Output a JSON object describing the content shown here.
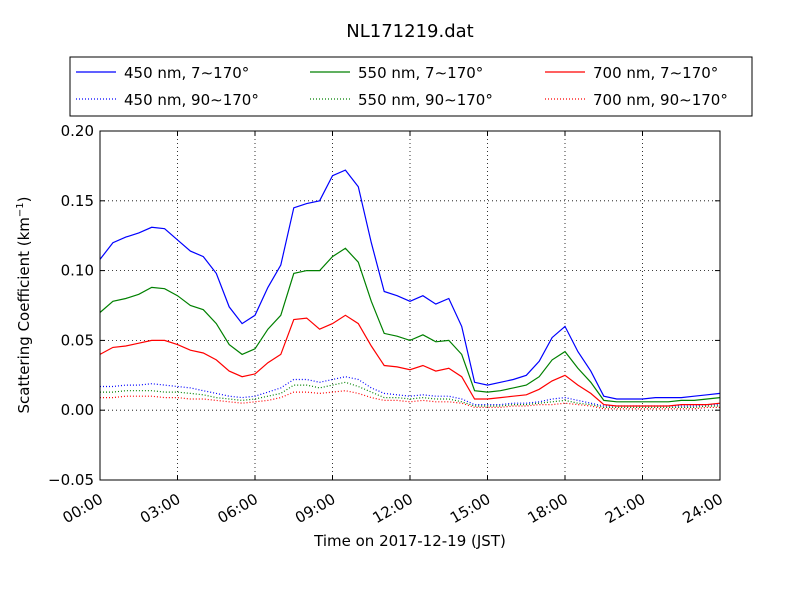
{
  "chart_data": {
    "type": "line",
    "title": "NL171219.dat",
    "xlabel": "Time on 2017-12-19 (JST)",
    "ylabel": "Scattering Coefficient (km",
    "ylabel_sup": "−1",
    "ylabel_close": ")",
    "xlim": [
      0,
      24
    ],
    "ylim": [
      -0.05,
      0.2
    ],
    "grid": true,
    "legend_position": "top, above plot",
    "x_tick_labels": [
      "00:00",
      "03:00",
      "06:00",
      "09:00",
      "12:00",
      "15:00",
      "18:00",
      "21:00",
      "24:00"
    ],
    "x_tick_values": [
      0,
      3,
      6,
      9,
      12,
      15,
      18,
      21,
      24
    ],
    "y_tick_labels": [
      "−0.05",
      "0.00",
      "0.05",
      "0.10",
      "0.15",
      "0.20"
    ],
    "y_tick_values": [
      -0.05,
      0.0,
      0.05,
      0.1,
      0.15,
      0.2
    ],
    "x": [
      0,
      0.5,
      1,
      1.5,
      2,
      2.5,
      3,
      3.5,
      4,
      4.5,
      5,
      5.5,
      6,
      6.5,
      7,
      7.5,
      8,
      8.5,
      9,
      9.5,
      10,
      10.5,
      11,
      11.5,
      12,
      12.5,
      13,
      13.5,
      14,
      14.5,
      15,
      15.5,
      16,
      16.5,
      17,
      17.5,
      18,
      18.5,
      19,
      19.5,
      20,
      20.5,
      21,
      21.5,
      22,
      22.5,
      23,
      23.5,
      24
    ],
    "series": [
      {
        "name": "450 nm, 7∼170°",
        "color": "#0000ff",
        "style": "solid",
        "values": [
          0.108,
          0.12,
          0.124,
          0.127,
          0.131,
          0.13,
          0.122,
          0.114,
          0.11,
          0.098,
          0.074,
          0.062,
          0.068,
          0.088,
          0.104,
          0.145,
          0.148,
          0.15,
          0.168,
          0.172,
          0.16,
          0.12,
          0.085,
          0.082,
          0.078,
          0.082,
          0.076,
          0.08,
          0.06,
          0.02,
          0.018,
          0.02,
          0.022,
          0.025,
          0.035,
          0.052,
          0.06,
          0.042,
          0.028,
          0.01,
          0.008,
          0.008,
          0.008,
          0.009,
          0.009,
          0.009,
          0.01,
          0.011,
          0.012
        ]
      },
      {
        "name": "450 nm, 90∼170°",
        "color": "#0000ff",
        "style": "dotted",
        "values": [
          0.017,
          0.017,
          0.018,
          0.018,
          0.019,
          0.018,
          0.017,
          0.016,
          0.014,
          0.012,
          0.01,
          0.009,
          0.01,
          0.013,
          0.016,
          0.022,
          0.022,
          0.02,
          0.022,
          0.024,
          0.022,
          0.016,
          0.012,
          0.011,
          0.01,
          0.011,
          0.01,
          0.01,
          0.008,
          0.004,
          0.004,
          0.004,
          0.005,
          0.005,
          0.006,
          0.008,
          0.009,
          0.007,
          0.005,
          0.003,
          0.003,
          0.003,
          0.003,
          0.003,
          0.003,
          0.003,
          0.003,
          0.004,
          0.004
        ]
      },
      {
        "name": "550 nm, 7∼170°",
        "color": "#008000",
        "style": "solid",
        "values": [
          0.07,
          0.078,
          0.08,
          0.083,
          0.088,
          0.087,
          0.082,
          0.075,
          0.072,
          0.062,
          0.047,
          0.04,
          0.044,
          0.058,
          0.068,
          0.098,
          0.1,
          0.1,
          0.11,
          0.116,
          0.106,
          0.078,
          0.055,
          0.053,
          0.05,
          0.054,
          0.049,
          0.05,
          0.04,
          0.014,
          0.013,
          0.014,
          0.016,
          0.018,
          0.024,
          0.036,
          0.042,
          0.03,
          0.02,
          0.007,
          0.006,
          0.006,
          0.006,
          0.006,
          0.006,
          0.007,
          0.007,
          0.008,
          0.009
        ]
      },
      {
        "name": "550 nm, 90∼170°",
        "color": "#008000",
        "style": "dotted",
        "values": [
          0.013,
          0.013,
          0.014,
          0.014,
          0.014,
          0.013,
          0.013,
          0.012,
          0.011,
          0.009,
          0.008,
          0.007,
          0.008,
          0.01,
          0.012,
          0.018,
          0.018,
          0.016,
          0.018,
          0.02,
          0.017,
          0.013,
          0.009,
          0.009,
          0.008,
          0.009,
          0.008,
          0.008,
          0.006,
          0.003,
          0.003,
          0.003,
          0.004,
          0.004,
          0.005,
          0.006,
          0.007,
          0.005,
          0.004,
          0.002,
          0.002,
          0.002,
          0.002,
          0.002,
          0.002,
          0.002,
          0.002,
          0.003,
          0.003
        ]
      },
      {
        "name": "700 nm, 7∼170°",
        "color": "#ff0000",
        "style": "solid",
        "values": [
          0.04,
          0.045,
          0.046,
          0.048,
          0.05,
          0.05,
          0.047,
          0.043,
          0.041,
          0.036,
          0.028,
          0.024,
          0.026,
          0.034,
          0.04,
          0.065,
          0.066,
          0.058,
          0.062,
          0.068,
          0.062,
          0.046,
          0.032,
          0.031,
          0.029,
          0.032,
          0.028,
          0.03,
          0.024,
          0.008,
          0.008,
          0.009,
          0.01,
          0.011,
          0.015,
          0.021,
          0.025,
          0.018,
          0.012,
          0.004,
          0.003,
          0.003,
          0.003,
          0.003,
          0.003,
          0.004,
          0.004,
          0.004,
          0.005
        ]
      },
      {
        "name": "700 nm, 90∼170°",
        "color": "#ff0000",
        "style": "dotted",
        "values": [
          0.009,
          0.009,
          0.01,
          0.01,
          0.01,
          0.009,
          0.009,
          0.008,
          0.008,
          0.007,
          0.006,
          0.005,
          0.006,
          0.007,
          0.009,
          0.013,
          0.013,
          0.012,
          0.013,
          0.014,
          0.012,
          0.009,
          0.007,
          0.007,
          0.006,
          0.007,
          0.006,
          0.006,
          0.005,
          0.002,
          0.002,
          0.002,
          0.003,
          0.003,
          0.004,
          0.004,
          0.005,
          0.004,
          0.003,
          0.001,
          0.001,
          0.001,
          0.001,
          0.001,
          0.001,
          0.001,
          0.001,
          0.002,
          0.002
        ]
      }
    ]
  }
}
